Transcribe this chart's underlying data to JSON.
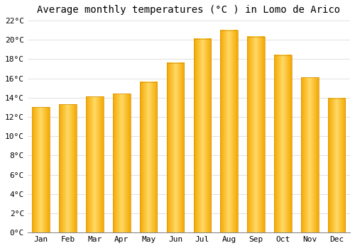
{
  "title": "Average monthly temperatures (°C ) in Lomo de Arico",
  "months": [
    "Jan",
    "Feb",
    "Mar",
    "Apr",
    "May",
    "Jun",
    "Jul",
    "Aug",
    "Sep",
    "Oct",
    "Nov",
    "Dec"
  ],
  "values": [
    13.0,
    13.3,
    14.1,
    14.4,
    15.6,
    17.6,
    20.1,
    21.0,
    20.3,
    18.4,
    16.1,
    13.9
  ],
  "bar_color_edge": "#F5A800",
  "bar_color_center": "#FFD966",
  "ylim": [
    0,
    22
  ],
  "ytick_step": 2,
  "background_color": "#FFFFFF",
  "grid_color": "#E0E0E0",
  "title_fontsize": 10,
  "tick_fontsize": 8,
  "font_family": "monospace",
  "bar_width": 0.65
}
